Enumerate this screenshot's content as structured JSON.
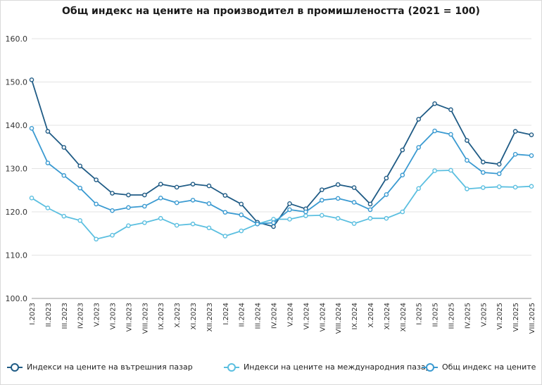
{
  "chart_data": {
    "type": "line",
    "title": "Общ индекс на цените на производител в промишлеността (2021 = 100)",
    "xlabel": "",
    "ylabel": "",
    "ylim": [
      100,
      160
    ],
    "yticks": [
      "100.0",
      "110.0",
      "120.0",
      "130.0",
      "140.0",
      "150.0",
      "160.0"
    ],
    "ytick_values": [
      100,
      110,
      120,
      130,
      140,
      150,
      160
    ],
    "grid": true,
    "legend_position": "bottom",
    "categories": [
      "I.2023",
      "II.2023",
      "III.2023",
      "IV.2023",
      "V.2023",
      "VI.2023",
      "VII.2023",
      "VIII.2023",
      "IX.2023",
      "X.2023",
      "XI.2023",
      "XII.2023",
      "I.2024",
      "II.2024",
      "III.2024",
      "IV.2024",
      "V.2024",
      "VI.2024",
      "VII.2024",
      "VIII.2024",
      "IX.2024",
      "X.2024",
      "XI.2024",
      "XII.2024",
      "I.2025",
      "II.2025",
      "III.2025",
      "IV.2025",
      "V.2025",
      "VI.2025",
      "VII.2025",
      "VIII.2025"
    ],
    "series": [
      {
        "name": "Индекси на цените на вътрешния пазар",
        "color": "#1f5b85",
        "values": [
          150.5,
          138.6,
          134.9,
          130.6,
          127.4,
          124.3,
          123.9,
          123.9,
          126.4,
          125.7,
          126.4,
          126.0,
          123.8,
          121.8,
          117.6,
          116.6,
          121.9,
          120.7,
          125.1,
          126.3,
          125.6,
          121.8,
          127.8,
          134.3,
          141.4,
          145.0,
          143.6,
          136.5,
          131.5,
          131.0,
          138.6,
          137.8
        ]
      },
      {
        "name": "Индекси на цените на международния пазар",
        "color": "#5bbfe0",
        "values": [
          123.2,
          120.9,
          119.0,
          118.0,
          113.7,
          114.6,
          116.8,
          117.5,
          118.5,
          116.9,
          117.2,
          116.3,
          114.4,
          115.6,
          117.2,
          118.3,
          118.3,
          119.1,
          119.2,
          118.5,
          117.3,
          118.5,
          118.5,
          120.0,
          125.4,
          129.5,
          129.6,
          125.3,
          125.6,
          125.8,
          125.7,
          125.9
        ]
      },
      {
        "name": "Общ индекс на цените",
        "color": "#3a9ad1",
        "values": [
          139.3,
          131.3,
          128.4,
          125.5,
          121.8,
          120.3,
          121.0,
          121.3,
          123.2,
          122.1,
          122.7,
          121.9,
          119.9,
          119.3,
          117.2,
          117.5,
          120.5,
          120.0,
          122.7,
          123.1,
          122.2,
          120.5,
          124.0,
          128.5,
          134.9,
          138.7,
          137.9,
          131.9,
          129.1,
          128.8,
          133.3,
          133.0
        ]
      }
    ]
  }
}
